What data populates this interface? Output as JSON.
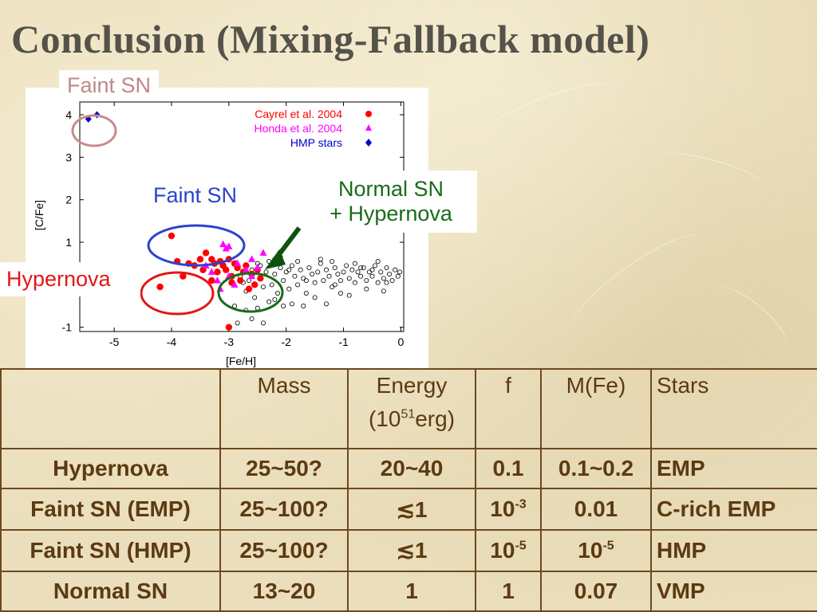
{
  "slide": {
    "title": "Conclusion (Mixing-Fallback model)"
  },
  "callouts": {
    "faint_top": "Faint SN",
    "faint_mid": "Faint SN",
    "normal_line1": "Normal SN",
    "normal_line2": "+ Hypernova",
    "hypernova": "Hypernova"
  },
  "colors": {
    "cayrel": "#ff0000",
    "honda": "#ff00ff",
    "hmp": "#0000cc",
    "faint_top_ring": "#c98b8b",
    "faint_mid_ring": "#2a43cf",
    "hyper_ring": "#e31515",
    "normal_ring": "#1a6b1a",
    "arrow": "#0d520d",
    "table_text": "#5b3a12",
    "table_border": "#6b4a1e"
  },
  "chart_data": {
    "type": "scatter",
    "xlabel": "[Fe/H]",
    "ylabel": "[C/Fe]",
    "xlim": [
      -5.6,
      0.05
    ],
    "ylim": [
      -1.1,
      4.3
    ],
    "xticks": [
      -5,
      -4,
      -3,
      -2,
      -1,
      0
    ],
    "yticks": [
      -1,
      1,
      2,
      3,
      4
    ],
    "grid": false,
    "legend_position": "top-right",
    "series": [
      {
        "name": "Cayrel et al. 2004",
        "marker": "circle",
        "points": [
          [
            -4.0,
            1.15
          ],
          [
            -3.8,
            0.2
          ],
          [
            -3.7,
            0.5
          ],
          [
            -3.5,
            0.6
          ],
          [
            -3.4,
            0.75
          ],
          [
            -3.3,
            0.6
          ],
          [
            -3.25,
            0.5
          ],
          [
            -3.2,
            0.3
          ],
          [
            -3.15,
            0.55
          ],
          [
            -3.1,
            0.45
          ],
          [
            -3.05,
            0.35
          ],
          [
            -3.0,
            0.6
          ],
          [
            -2.95,
            0.2
          ],
          [
            -2.9,
            0.5
          ],
          [
            -2.85,
            0.4
          ],
          [
            -2.8,
            0.1
          ],
          [
            -2.75,
            0.3
          ],
          [
            -2.7,
            0.45
          ],
          [
            -2.6,
            0.25
          ],
          [
            -2.55,
            0.0
          ],
          [
            -2.5,
            0.35
          ],
          [
            -2.45,
            0.15
          ],
          [
            -3.0,
            -1.0
          ],
          [
            -3.6,
            0.45
          ],
          [
            -3.3,
            0.1
          ],
          [
            -2.65,
            -0.1
          ],
          [
            -4.2,
            -0.05
          ],
          [
            -3.9,
            0.55
          ],
          [
            -3.45,
            0.35
          ],
          [
            -2.95,
            0.05
          ]
        ]
      },
      {
        "name": "Honda et al. 2004",
        "marker": "triangle",
        "points": [
          [
            -3.1,
            0.95
          ],
          [
            -3.0,
            0.9
          ],
          [
            -3.05,
            0.85
          ],
          [
            -2.6,
            0.6
          ],
          [
            -2.5,
            0.4
          ],
          [
            -3.2,
            0.1
          ],
          [
            -3.0,
            0.2
          ],
          [
            -2.85,
            0.5
          ],
          [
            -2.7,
            0.35
          ],
          [
            -3.15,
            -0.1
          ],
          [
            -2.4,
            0.75
          ],
          [
            -3.3,
            0.3
          ],
          [
            -2.9,
            0.0
          ],
          [
            -2.6,
            0.2
          ],
          [
            -3.4,
            0.45
          ]
        ]
      },
      {
        "name": "HMP stars",
        "marker": "diamond",
        "points": [
          [
            -5.45,
            3.9
          ],
          [
            -5.3,
            4.0
          ]
        ]
      },
      {
        "name": "",
        "marker": "open-circle",
        "points": [
          [
            -2.8,
            0.2
          ],
          [
            -2.75,
            0.05
          ],
          [
            -2.7,
            -0.15
          ],
          [
            -2.65,
            0.1
          ],
          [
            -2.6,
            0.35
          ],
          [
            -2.55,
            -0.3
          ],
          [
            -2.5,
            0.5
          ],
          [
            -2.45,
            0.15
          ],
          [
            -2.4,
            -0.05
          ],
          [
            -2.35,
            0.3
          ],
          [
            -2.3,
            0.55
          ],
          [
            -2.25,
            0.0
          ],
          [
            -2.2,
            0.25
          ],
          [
            -2.15,
            -0.2
          ],
          [
            -2.1,
            0.4
          ],
          [
            -2.05,
            0.1
          ],
          [
            -2.0,
            0.3
          ],
          [
            -1.95,
            -0.1
          ],
          [
            -1.9,
            0.45
          ],
          [
            -1.85,
            0.2
          ],
          [
            -1.8,
            0.0
          ],
          [
            -1.75,
            0.35
          ],
          [
            -1.7,
            0.15
          ],
          [
            -1.65,
            -0.2
          ],
          [
            -1.6,
            0.4
          ],
          [
            -1.55,
            0.25
          ],
          [
            -1.5,
            0.05
          ],
          [
            -1.45,
            0.3
          ],
          [
            -1.4,
            0.5
          ],
          [
            -1.35,
            0.1
          ],
          [
            -1.3,
            0.35
          ],
          [
            -1.25,
            0.2
          ],
          [
            -1.2,
            -0.05
          ],
          [
            -1.15,
            0.4
          ],
          [
            -1.1,
            0.25
          ],
          [
            -1.05,
            0.1
          ],
          [
            -1.0,
            0.3
          ],
          [
            -0.95,
            0.45
          ],
          [
            -0.9,
            0.15
          ],
          [
            -0.85,
            0.35
          ],
          [
            -0.8,
            0.05
          ],
          [
            -0.75,
            0.3
          ],
          [
            -0.7,
            0.2
          ],
          [
            -0.65,
            0.4
          ],
          [
            -0.6,
            0.1
          ],
          [
            -0.55,
            0.3
          ],
          [
            -0.5,
            0.2
          ],
          [
            -0.45,
            0.45
          ],
          [
            -0.4,
            0.05
          ],
          [
            -0.35,
            0.3
          ],
          [
            -0.3,
            0.15
          ],
          [
            -0.25,
            0.4
          ],
          [
            -0.2,
            0.25
          ],
          [
            -0.15,
            0.1
          ],
          [
            -0.1,
            0.35
          ],
          [
            -0.05,
            0.2
          ],
          [
            -0.02,
            0.3
          ],
          [
            -2.9,
            -0.5
          ],
          [
            -2.7,
            -0.6
          ],
          [
            -2.5,
            -0.55
          ],
          [
            -2.3,
            -0.4
          ],
          [
            -2.2,
            -0.35
          ],
          [
            -2.05,
            -0.5
          ],
          [
            -1.9,
            -0.45
          ],
          [
            -1.7,
            -0.5
          ],
          [
            -1.5,
            -0.3
          ],
          [
            -1.3,
            -0.45
          ],
          [
            -1.05,
            -0.2
          ],
          [
            -0.9,
            -0.25
          ],
          [
            -0.6,
            -0.1
          ],
          [
            -0.3,
            -0.15
          ],
          [
            -2.6,
            -0.8
          ],
          [
            -2.4,
            -0.9
          ],
          [
            -2.85,
            -0.9
          ],
          [
            -2.1,
            0.65
          ],
          [
            -1.8,
            0.55
          ],
          [
            -1.4,
            0.6
          ],
          [
            -0.8,
            0.5
          ],
          [
            -0.4,
            0.55
          ],
          [
            -2.2,
            0.6
          ],
          [
            -1.2,
            0.55
          ],
          [
            -2.45,
            0.45
          ],
          [
            -1.65,
            0.1
          ],
          [
            -0.7,
            0.4
          ],
          [
            -0.25,
            0.05
          ],
          [
            -1.95,
            0.35
          ],
          [
            -1.15,
            0.0
          ],
          [
            -0.5,
            0.35
          ]
        ]
      }
    ],
    "annotation_regions": [
      {
        "label": "Faint SN",
        "center": [
          -5.35,
          3.9
        ]
      },
      {
        "label": "Faint SN",
        "center": [
          -3.5,
          1.0
        ]
      },
      {
        "label": "Hypernova",
        "center": [
          -3.7,
          0.25
        ]
      },
      {
        "label": "Normal SN + Hypernova",
        "center": [
          -2.7,
          0.3
        ]
      }
    ]
  },
  "table": {
    "headers": [
      "",
      "Mass",
      "Energy",
      "f",
      "M(Fe)",
      "Stars"
    ],
    "energy_unit_prefix": "(10",
    "energy_unit_exp": "51",
    "energy_unit_suffix": "erg)",
    "rows": [
      {
        "type": "Hypernova",
        "mass": "25~50?",
        "energy": "20~40",
        "f_base": "0.1",
        "f_exp": "",
        "mfe_base": "0.1~0.2",
        "mfe_exp": "",
        "stars": "EMP"
      },
      {
        "type": "Faint SN (EMP)",
        "mass": "25~100?",
        "energy": "≲1",
        "f_base": "10",
        "f_exp": "-3",
        "mfe_base": "0.01",
        "mfe_exp": "",
        "stars": "C-rich EMP"
      },
      {
        "type": "Faint SN (HMP)",
        "mass": "25~100?",
        "energy": "≲1",
        "f_base": "10",
        "f_exp": "-5",
        "mfe_base": "10",
        "mfe_exp": "-5",
        "stars": "HMP"
      },
      {
        "type": "Normal SN",
        "mass": "13~20",
        "energy": "1",
        "f_base": "1",
        "f_exp": "",
        "mfe_base": "0.07",
        "mfe_exp": "",
        "stars": "VMP"
      }
    ]
  }
}
